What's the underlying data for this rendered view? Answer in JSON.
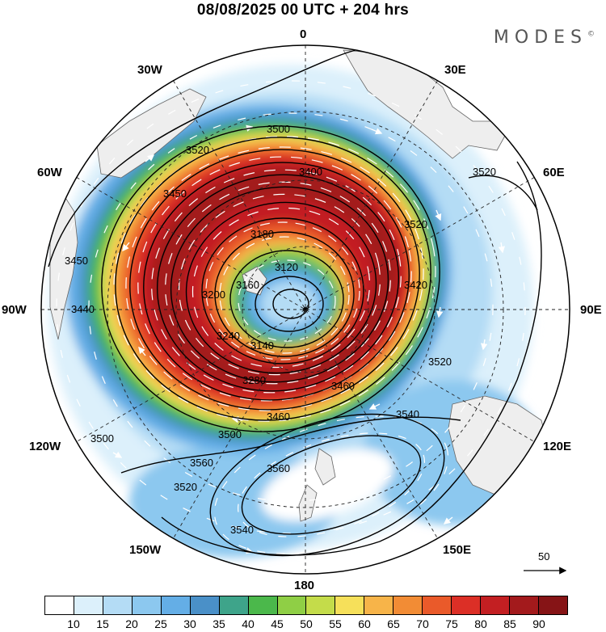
{
  "title": "08/08/2025  00 UTC  + 204 hrs",
  "brand": "MODES",
  "brand_mark": "©",
  "longitude_labels": {
    "lon_0": "0",
    "lon_30w": "30W",
    "lon_30e": "30E",
    "lon_60w": "60W",
    "lon_60e": "60E",
    "lon_90w": "90W",
    "lon_90e": "90E",
    "lon_120w": "120W",
    "lon_120e": "120E",
    "lon_150w": "150W",
    "lon_150e": "150E",
    "lon_180": "180"
  },
  "contour_labels": [
    "3500",
    "3520",
    "3400",
    "3450",
    "3520",
    "3560",
    "3180",
    "3120",
    "3160",
    "3140",
    "3280",
    "3460",
    "3500",
    "3500",
    "3540",
    "3520",
    "3520",
    "3540",
    "3560",
    "3450",
    "3440",
    "3420",
    "3520",
    "3460",
    "3200",
    "3240"
  ],
  "wind_reference_value": "50",
  "colorbar": {
    "ticks": [
      "10",
      "15",
      "20",
      "25",
      "30",
      "35",
      "40",
      "45",
      "50",
      "55",
      "60",
      "65",
      "70",
      "75",
      "80",
      "85",
      "90"
    ],
    "colors": [
      "#ffffff",
      "#dcf0fb",
      "#b4dcf5",
      "#8cc8ef",
      "#64aee6",
      "#4a90c8",
      "#3ea48a",
      "#4bb84b",
      "#8fcf45",
      "#c4dc4a",
      "#f6e05a",
      "#f7b449",
      "#f28c35",
      "#ea5a2a",
      "#dc2f26",
      "#c31f22",
      "#a31a1c",
      "#861416"
    ]
  }
}
